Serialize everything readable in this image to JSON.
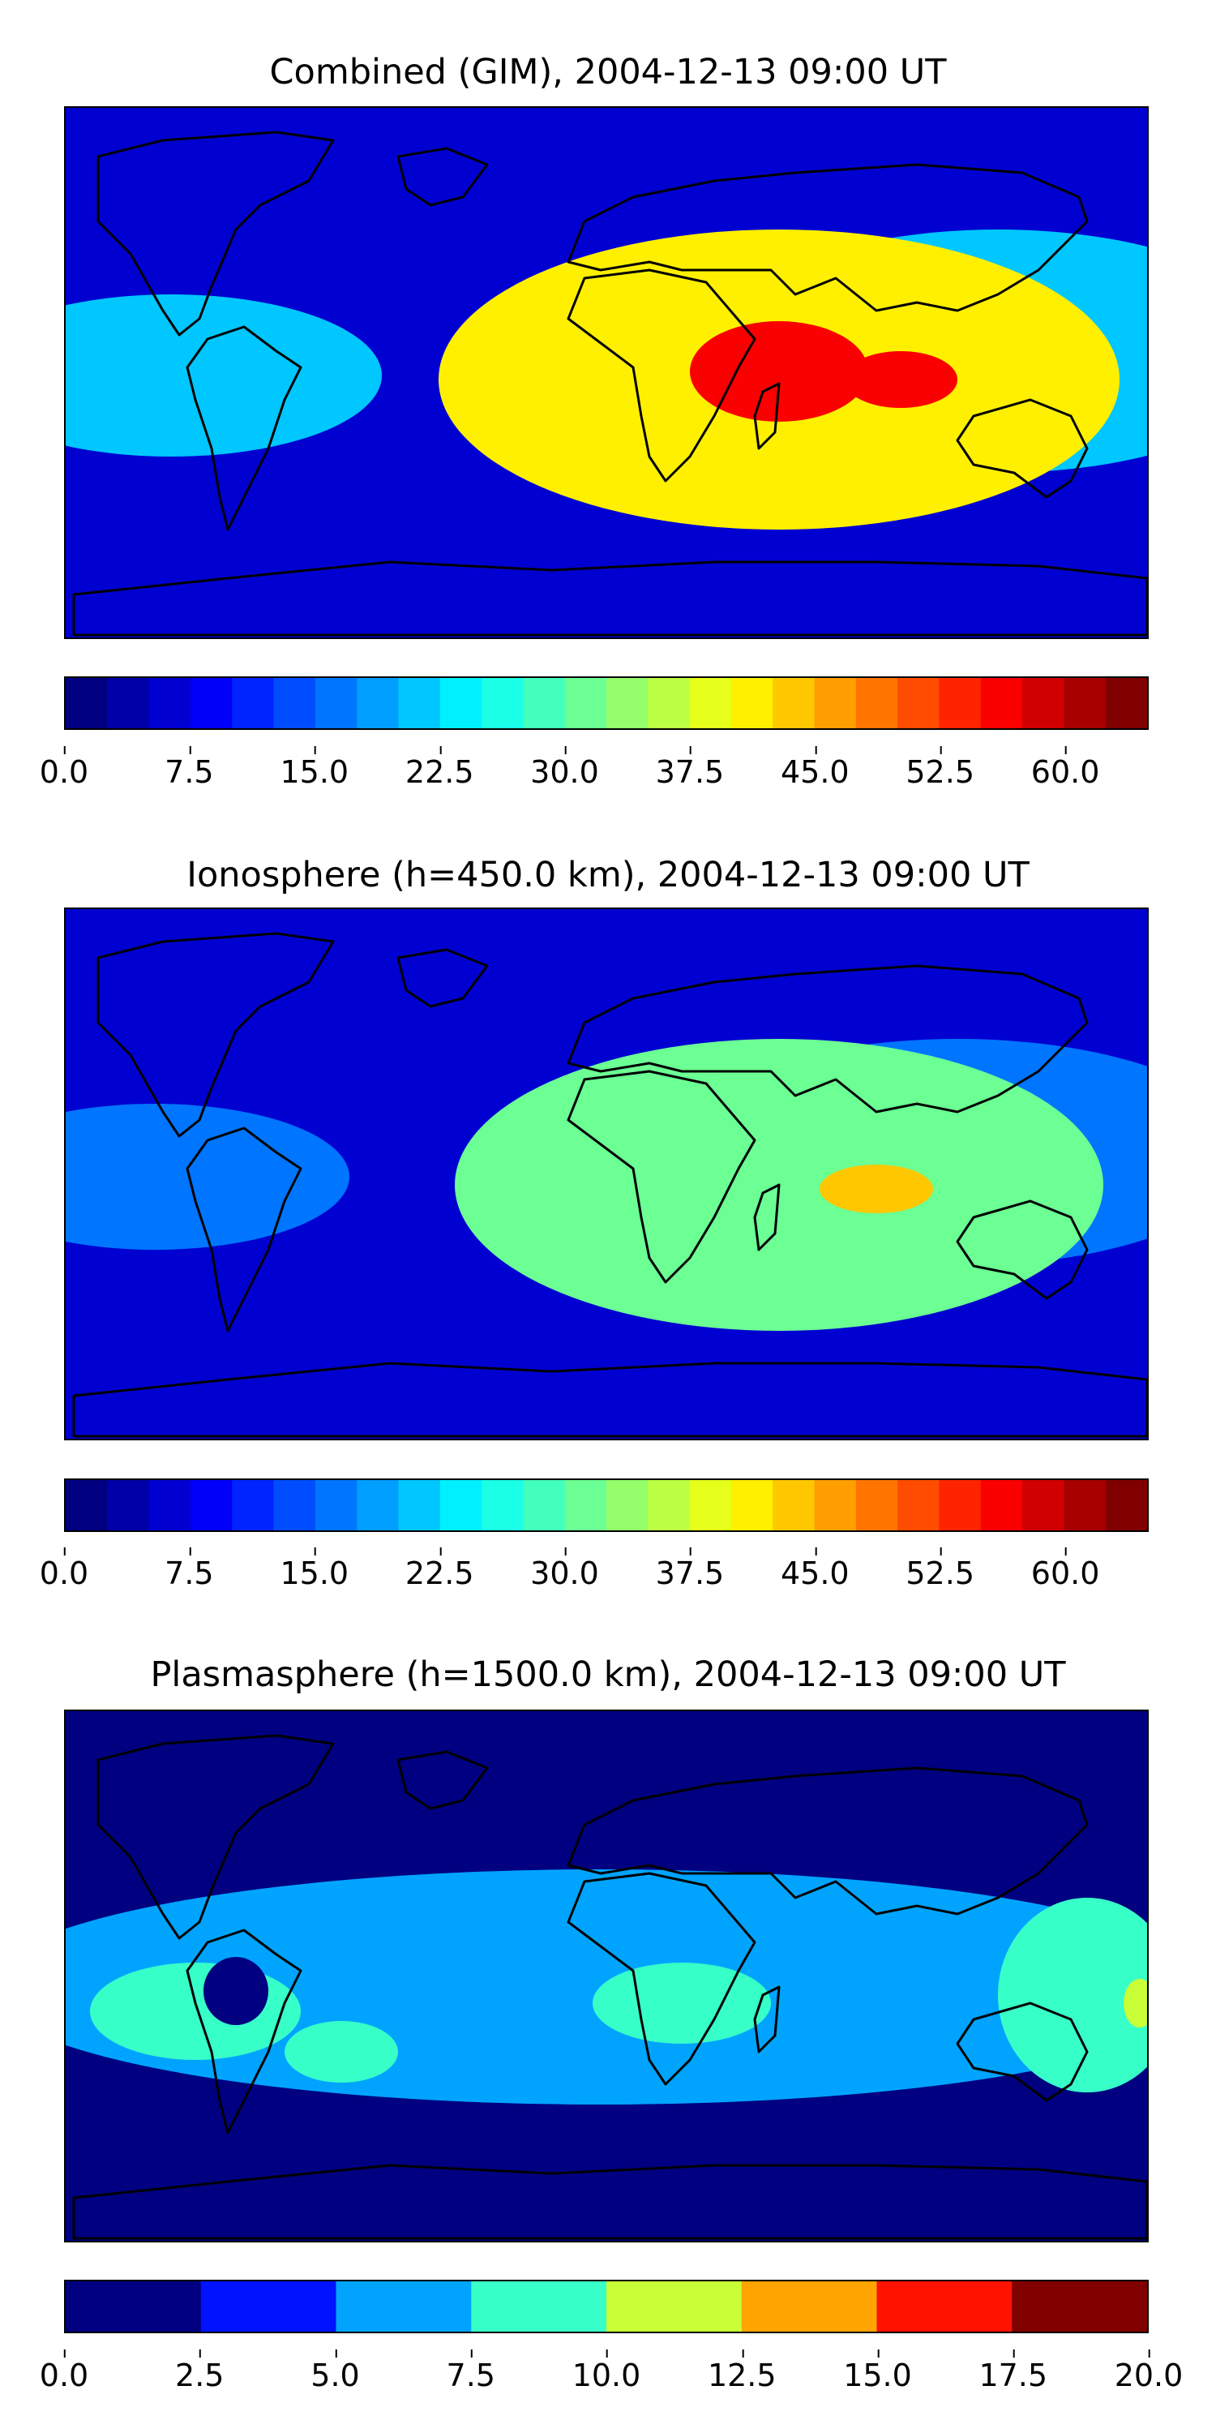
{
  "chart_data": [
    {
      "type": "heatmap",
      "title": "Combined (GIM), 2004-12-13 09:00 UT",
      "xlabel": "",
      "ylabel": "",
      "map": "world",
      "colormap": "jet",
      "colorbar": {
        "min": 0.0,
        "max": 65.0,
        "levels": 26,
        "step": 2.5,
        "ticks": [
          "0.0",
          "7.5",
          "15.0",
          "22.5",
          "30.0",
          "37.5",
          "45.0",
          "52.5",
          "60.0"
        ]
      },
      "field_features": [
        {
          "feature": "background",
          "value": 7
        },
        {
          "feature": "africa-indian-ocean maximum",
          "value": 55
        },
        {
          "feature": "africa crest",
          "value": 41
        },
        {
          "feature": "equatorial pacific band",
          "value": 20
        }
      ]
    },
    {
      "type": "heatmap",
      "title": "Ionosphere  (h=450.0 km), 2004-12-13 09:00 UT",
      "xlabel": "",
      "ylabel": "",
      "map": "world",
      "colormap": "jet",
      "colorbar": {
        "min": 0.0,
        "max": 65.0,
        "levels": 26,
        "step": 2.5,
        "ticks": [
          "0.0",
          "7.5",
          "15.0",
          "22.5",
          "30.0",
          "37.5",
          "45.0",
          "52.5",
          "60.0"
        ]
      },
      "field_features": [
        {
          "feature": "background",
          "value": 5
        },
        {
          "feature": "indian ocean maximum",
          "value": 44
        },
        {
          "feature": "africa crest",
          "value": 32
        },
        {
          "feature": "equatorial pacific band",
          "value": 15
        }
      ]
    },
    {
      "type": "heatmap",
      "title": "Plasmasphere (h=1500.0 km), 2004-12-13 09:00 UT",
      "xlabel": "",
      "ylabel": "",
      "map": "world",
      "colormap": "jet",
      "colorbar": {
        "min": 0.0,
        "max": 20.0,
        "levels": 8,
        "step": 2.5,
        "ticks": [
          "0.0",
          "2.5",
          "5.0",
          "7.5",
          "10.0",
          "12.5",
          "15.0",
          "17.5",
          "20.0"
        ]
      },
      "field_features": [
        {
          "feature": "background",
          "value": 1.5
        },
        {
          "feature": "equatorial band",
          "value": 6
        },
        {
          "feature": "pacific patches",
          "value": 8.5
        },
        {
          "feature": "east edge maximum",
          "value": 11
        }
      ]
    }
  ]
}
